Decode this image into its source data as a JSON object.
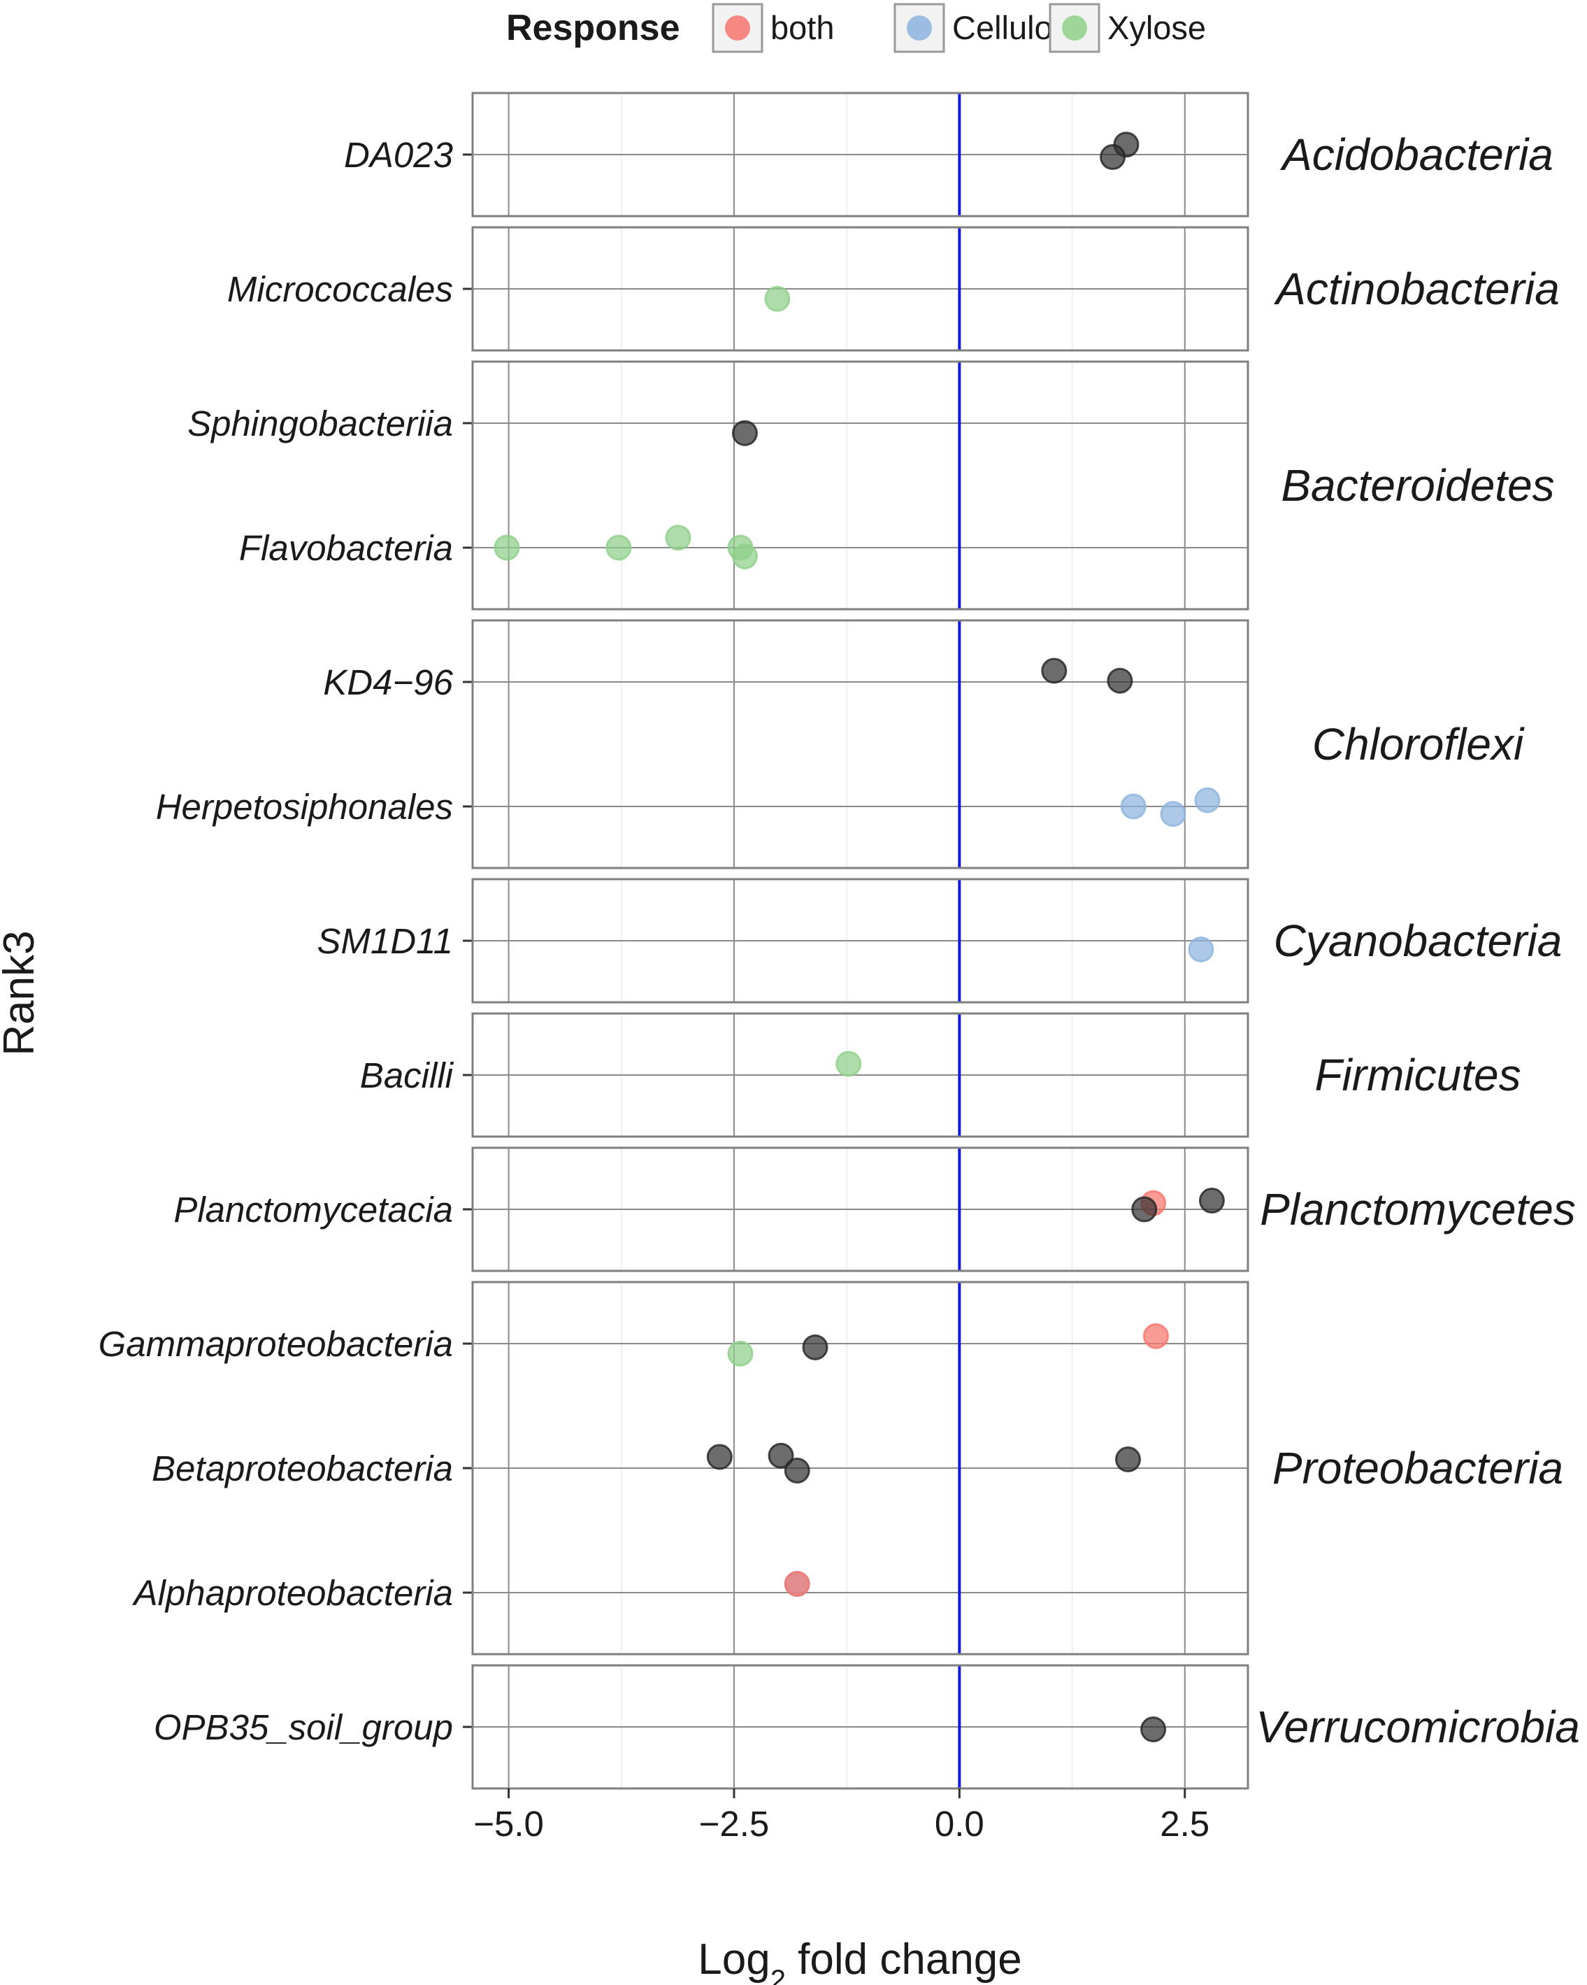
{
  "chart_data": {
    "type": "scatter",
    "xlabel": "Log₂ fold change",
    "xlabel_main": "Log",
    "xlabel_sub": "2",
    "xlabel_rest": " fold change",
    "ylabel": "Rank3",
    "xlim": [
      -5.4,
      3.2
    ],
    "x_ticks": [
      -5.0,
      -2.5,
      0.0,
      2.5
    ],
    "x_tick_labels": [
      "−5.0",
      "−2.5",
      "0.0",
      "2.5"
    ],
    "reference_line": {
      "x": 0,
      "color": "#1515e6"
    },
    "grid": true,
    "legend": {
      "title": "Response",
      "position": "top",
      "entries": [
        {
          "label": "both",
          "color": "#f8766d"
        },
        {
          "label": "Cellulose",
          "color": "#8db4de"
        },
        {
          "label": "Xylose",
          "color": "#8fd08a"
        }
      ]
    },
    "default_point_color": "#333333",
    "facets": [
      {
        "phylum": "Acidobacteria",
        "rows": [
          "DA023"
        ],
        "points": [
          {
            "row": "DA023",
            "x": 1.85,
            "y_jitter": 0.08,
            "response": null
          },
          {
            "row": "DA023",
            "x": 1.7,
            "y_jitter": -0.02,
            "response": null
          }
        ]
      },
      {
        "phylum": "Actinobacteria",
        "rows": [
          "Micrococcales"
        ],
        "points": [
          {
            "row": "Micrococcales",
            "x": -2.02,
            "y_jitter": -0.08,
            "response": "Xylose"
          }
        ]
      },
      {
        "phylum": "Bacteroidetes",
        "rows": [
          "Sphingobacteriia",
          "Flavobacteria"
        ],
        "points": [
          {
            "row": "Sphingobacteriia",
            "x": -2.38,
            "y_jitter": -0.08,
            "response": null
          },
          {
            "row": "Flavobacteria",
            "x": -5.02,
            "y_jitter": 0.0,
            "response": "Xylose"
          },
          {
            "row": "Flavobacteria",
            "x": -3.78,
            "y_jitter": 0.0,
            "response": "Xylose"
          },
          {
            "row": "Flavobacteria",
            "x": -3.12,
            "y_jitter": 0.08,
            "response": "Xylose"
          },
          {
            "row": "Flavobacteria",
            "x": -2.43,
            "y_jitter": 0.0,
            "response": "Xylose"
          },
          {
            "row": "Flavobacteria",
            "x": -2.38,
            "y_jitter": -0.07,
            "response": "Xylose"
          }
        ]
      },
      {
        "phylum": "Chloroflexi",
        "rows": [
          "KD4−96",
          "Herpetosiphonales"
        ],
        "points": [
          {
            "row": "KD4−96",
            "x": 1.05,
            "y_jitter": 0.09,
            "response": null
          },
          {
            "row": "KD4−96",
            "x": 1.78,
            "y_jitter": 0.01,
            "response": null
          },
          {
            "row": "Herpetosiphonales",
            "x": 1.93,
            "y_jitter": 0.0,
            "response": "Cellulose"
          },
          {
            "row": "Herpetosiphonales",
            "x": 2.37,
            "y_jitter": -0.06,
            "response": "Cellulose"
          },
          {
            "row": "Herpetosiphonales",
            "x": 2.75,
            "y_jitter": 0.05,
            "response": "Cellulose"
          }
        ]
      },
      {
        "phylum": "Cyanobacteria",
        "rows": [
          "SM1D11"
        ],
        "points": [
          {
            "row": "SM1D11",
            "x": 2.68,
            "y_jitter": -0.07,
            "response": "Cellulose"
          }
        ]
      },
      {
        "phylum": "Firmicutes",
        "rows": [
          "Bacilli"
        ],
        "points": [
          {
            "row": "Bacilli",
            "x": -1.23,
            "y_jitter": 0.09,
            "response": "Xylose"
          }
        ]
      },
      {
        "phylum": "Planctomycetes",
        "rows": [
          "Planctomycetacia"
        ],
        "points": [
          {
            "row": "Planctomycetacia",
            "x": 2.15,
            "y_jitter": 0.05,
            "response": "both"
          },
          {
            "row": "Planctomycetacia",
            "x": 2.05,
            "y_jitter": 0.0,
            "response": null
          },
          {
            "row": "Planctomycetacia",
            "x": 2.8,
            "y_jitter": 0.07,
            "response": null
          }
        ]
      },
      {
        "phylum": "Proteobacteria",
        "rows": [
          "Gammaproteobacteria",
          "Betaproteobacteria",
          "Alphaproteobacteria"
        ],
        "points": [
          {
            "row": "Gammaproteobacteria",
            "x": -2.43,
            "y_jitter": -0.08,
            "response": "Xylose"
          },
          {
            "row": "Gammaproteobacteria",
            "x": -1.6,
            "y_jitter": -0.03,
            "response": null
          },
          {
            "row": "Gammaproteobacteria",
            "x": 2.18,
            "y_jitter": 0.06,
            "response": "both"
          },
          {
            "row": "Betaproteobacteria",
            "x": -2.66,
            "y_jitter": 0.09,
            "response": null
          },
          {
            "row": "Betaproteobacteria",
            "x": -1.98,
            "y_jitter": 0.1,
            "response": null
          },
          {
            "row": "Betaproteobacteria",
            "x": -1.8,
            "y_jitter": -0.02,
            "response": null
          },
          {
            "row": "Betaproteobacteria",
            "x": 1.87,
            "y_jitter": 0.07,
            "response": null
          },
          {
            "row": "Alphaproteobacteria",
            "x": -1.8,
            "y_jitter": 0.07,
            "response": "Cellulose"
          },
          {
            "row": "Alphaproteobacteria",
            "x": -1.8,
            "y_jitter": 0.07,
            "response": "both"
          }
        ]
      },
      {
        "phylum": "Verrucomicrobia",
        "rows": [
          "OPB35_soil_group"
        ],
        "points": [
          {
            "row": "OPB35_soil_group",
            "x": 2.15,
            "y_jitter": -0.02,
            "response": null
          }
        ]
      }
    ]
  }
}
